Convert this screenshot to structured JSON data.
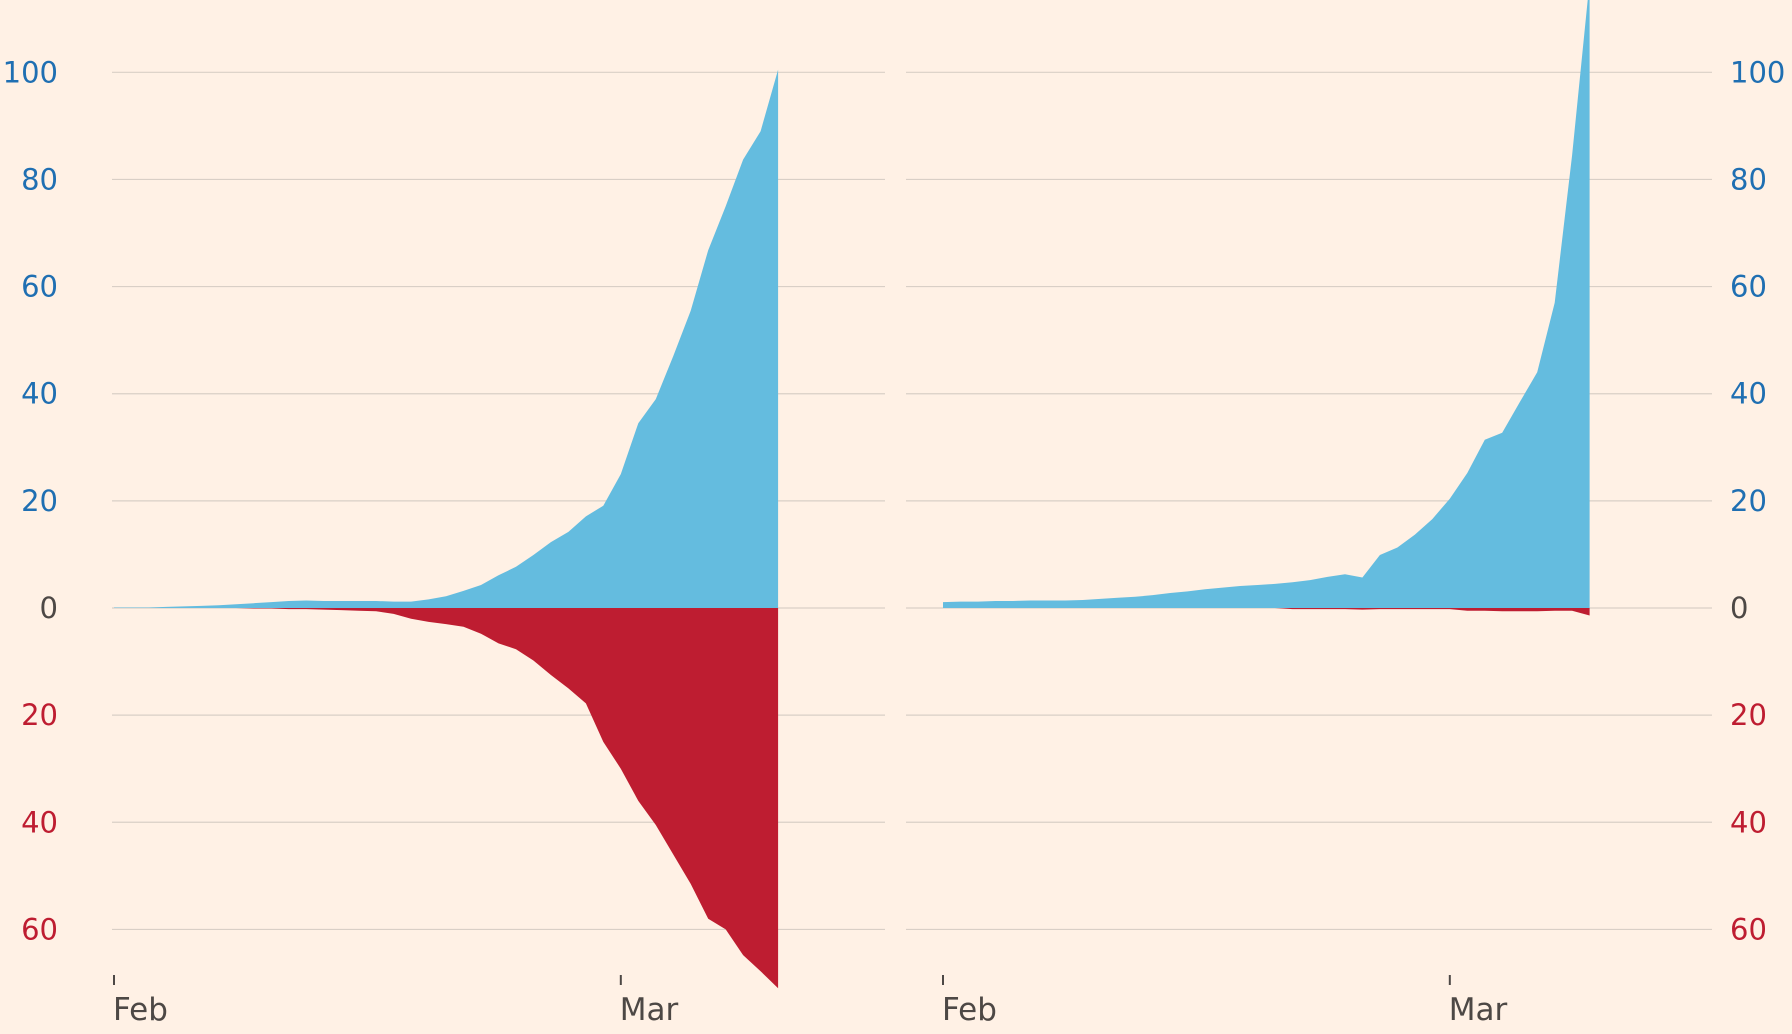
{
  "colors": {
    "background": "#fff1e5",
    "positive": "#64bcdf",
    "negative": "#be1d31",
    "positive_label": "#1f6fb2",
    "negative_label": "#be1d31",
    "zero_label": "#4d4845",
    "date_label": "#4d4845",
    "grid": "#d9cfc6"
  },
  "chart_data": [
    {
      "type": "area",
      "title": "",
      "xlabel": "",
      "ylabel": "",
      "x_ticks": [
        "Feb",
        "Mar"
      ],
      "x_range": [
        "2020-02-01",
        "2020-03-14"
      ],
      "ylim_positive": [
        0,
        100
      ],
      "ylim_negative": [
        0,
        60
      ],
      "y_ticks_positive": [
        "100",
        "80",
        "60",
        "40",
        "20",
        "0"
      ],
      "y_ticks_negative": [
        "20",
        "40",
        "60"
      ],
      "y_axis_side": "left",
      "grid": true,
      "x": [
        "2020-02-01",
        "2020-02-02",
        "2020-02-03",
        "2020-02-04",
        "2020-02-05",
        "2020-02-06",
        "2020-02-07",
        "2020-02-08",
        "2020-02-09",
        "2020-02-10",
        "2020-02-11",
        "2020-02-12",
        "2020-02-13",
        "2020-02-14",
        "2020-02-15",
        "2020-02-16",
        "2020-02-17",
        "2020-02-18",
        "2020-02-19",
        "2020-02-20",
        "2020-02-21",
        "2020-02-22",
        "2020-02-23",
        "2020-02-24",
        "2020-02-25",
        "2020-02-26",
        "2020-02-27",
        "2020-02-28",
        "2020-02-29",
        "2020-03-01",
        "2020-03-02",
        "2020-03-03",
        "2020-03-04",
        "2020-03-05",
        "2020-03-06",
        "2020-03-07",
        "2020-03-08",
        "2020-03-09",
        "2020-03-10",
        "2020-03-11",
        "2020-03-12",
        "2020-03-13",
        "2020-03-14"
      ],
      "series": [
        {
          "color": "#64bcdf",
          "direction": "up",
          "values": [
            0.1,
            0.1,
            0.1,
            0.2,
            0.3,
            0.4,
            0.5,
            0.7,
            0.9,
            1.1,
            1.3,
            1.4,
            1.3,
            1.3,
            1.3,
            1.3,
            1.2,
            1.2,
            1.6,
            2.2,
            3.2,
            4.3,
            6.1,
            7.7,
            9.9,
            12.3,
            14.2,
            17.1,
            19.1,
            25.0,
            34.5,
            39.0,
            47.0,
            55.5,
            66.8,
            75.0,
            83.7,
            89.0,
            100.5,
            null,
            null,
            null,
            null
          ]
        },
        {
          "color": "#be1d31",
          "direction": "down",
          "values": [
            0.0,
            0.0,
            0.0,
            0.0,
            0.0,
            0.0,
            0.0,
            0.0,
            0.1,
            0.1,
            0.2,
            0.2,
            0.3,
            0.4,
            0.5,
            0.6,
            1.1,
            2.0,
            2.6,
            3.0,
            3.5,
            4.8,
            6.6,
            7.7,
            9.8,
            12.5,
            15.0,
            17.8,
            25.0,
            30.0,
            36.0,
            40.5,
            46.0,
            51.5,
            58.0,
            60.0,
            64.8,
            67.8,
            71.0,
            null,
            null,
            null,
            null
          ]
        }
      ]
    },
    {
      "type": "area",
      "title": "",
      "xlabel": "",
      "ylabel": "",
      "x_ticks": [
        "Feb",
        "Mar"
      ],
      "x_range": [
        "2020-02-01",
        "2020-03-14"
      ],
      "ylim_positive": [
        0,
        100
      ],
      "ylim_negative": [
        0,
        60
      ],
      "y_ticks_positive": [
        "100",
        "80",
        "60",
        "40",
        "20",
        "0"
      ],
      "y_ticks_negative": [
        "20",
        "40",
        "60"
      ],
      "y_axis_side": "right",
      "grid": true,
      "x": [
        "2020-02-01",
        "2020-02-02",
        "2020-02-03",
        "2020-02-04",
        "2020-02-05",
        "2020-02-06",
        "2020-02-07",
        "2020-02-08",
        "2020-02-09",
        "2020-02-10",
        "2020-02-11",
        "2020-02-12",
        "2020-02-13",
        "2020-02-14",
        "2020-02-15",
        "2020-02-16",
        "2020-02-17",
        "2020-02-18",
        "2020-02-19",
        "2020-02-20",
        "2020-02-21",
        "2020-02-22",
        "2020-02-23",
        "2020-02-24",
        "2020-02-25",
        "2020-02-26",
        "2020-02-27",
        "2020-02-28",
        "2020-02-29",
        "2020-03-01",
        "2020-03-02",
        "2020-03-03",
        "2020-03-04",
        "2020-03-05",
        "2020-03-06",
        "2020-03-07",
        "2020-03-08",
        "2020-03-09",
        "2020-03-10",
        "2020-03-11",
        "2020-03-12",
        "2020-03-13",
        "2020-03-14"
      ],
      "series": [
        {
          "color": "#64bcdf",
          "direction": "up",
          "values": [
            1.1,
            1.2,
            1.2,
            1.3,
            1.3,
            1.4,
            1.4,
            1.4,
            1.5,
            1.7,
            1.9,
            2.1,
            2.4,
            2.8,
            3.1,
            3.5,
            3.8,
            4.1,
            4.3,
            4.5,
            4.8,
            5.2,
            5.8,
            6.3,
            5.7,
            9.9,
            11.3,
            13.7,
            16.6,
            20.4,
            25.2,
            31.4,
            32.7,
            38.4,
            44.0,
            57.0,
            84.5,
            117.0,
            null,
            null,
            null,
            null,
            null
          ]
        },
        {
          "color": "#be1d31",
          "direction": "down",
          "values": [
            0.0,
            0.0,
            0.0,
            0.0,
            0.0,
            0.0,
            0.0,
            0.0,
            0.0,
            0.0,
            0.0,
            0.0,
            0.0,
            0.0,
            0.0,
            0.0,
            0.0,
            0.0,
            0.0,
            0.0,
            0.2,
            0.2,
            0.2,
            0.2,
            0.3,
            0.2,
            0.2,
            0.2,
            0.2,
            0.2,
            0.5,
            0.5,
            0.6,
            0.6,
            0.6,
            0.5,
            0.5,
            1.4,
            null,
            null,
            null,
            null,
            null
          ]
        }
      ]
    }
  ]
}
